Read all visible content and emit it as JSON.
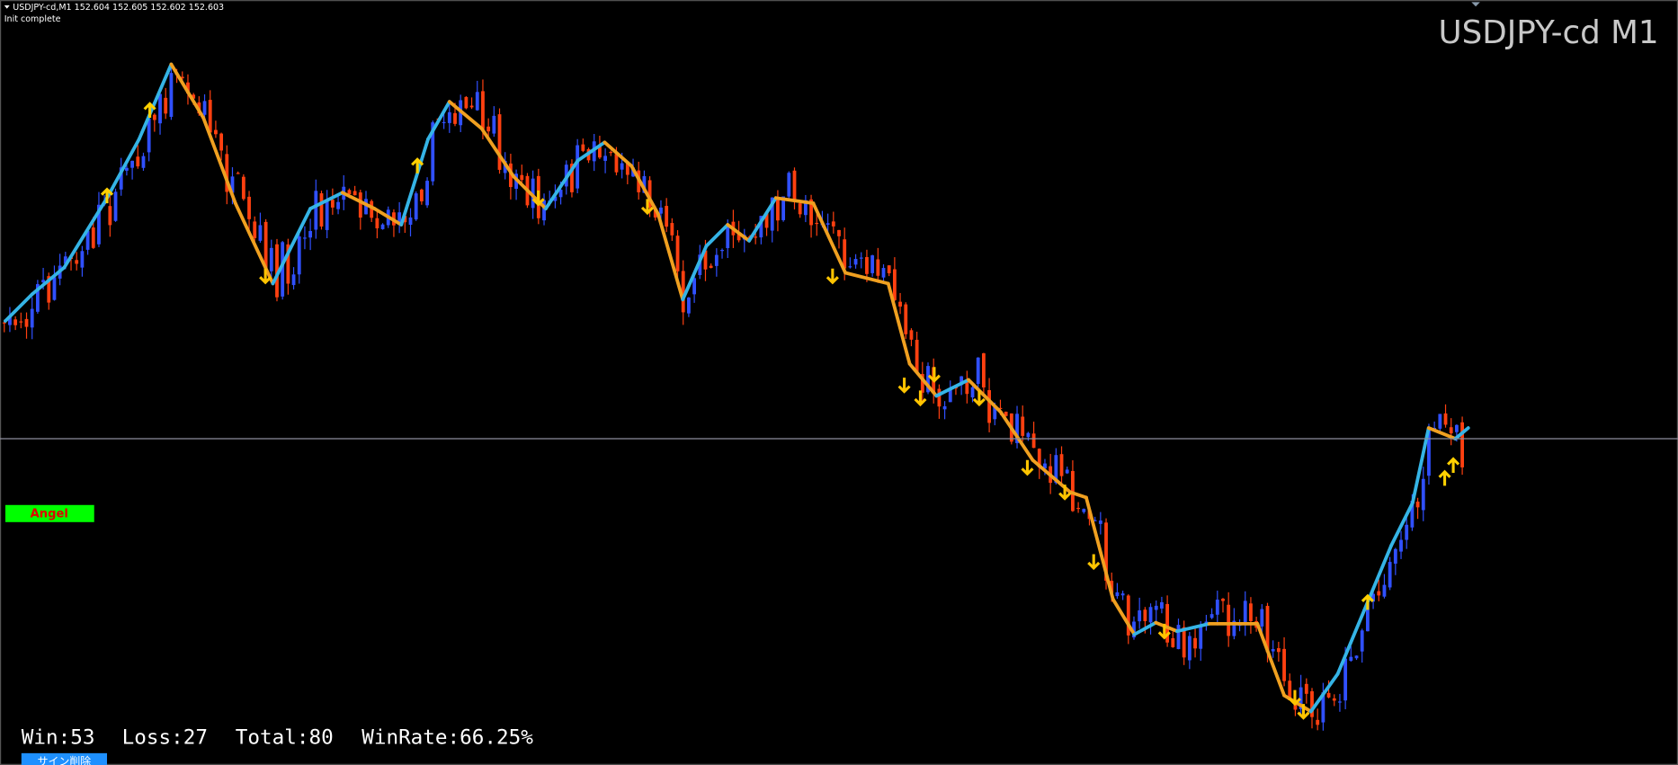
{
  "header": {
    "symbol_info": "USDJPY-cd,M1  152.604 152.605 152.602 152.603",
    "status": "Init complete"
  },
  "chart_label": "USDJPY-cd M1",
  "indicator_label": "Angel",
  "stats": {
    "win": "Win:53",
    "loss": "Loss:27",
    "total": "Total:80",
    "win_rate": "WinRate:66.25%"
  },
  "button": "サイン削除"
}
